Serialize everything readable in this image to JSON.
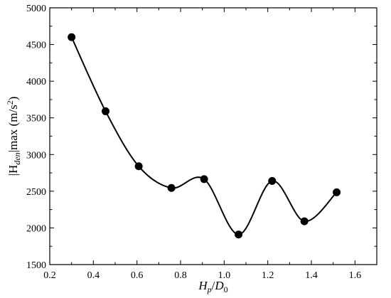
{
  "chart_data": {
    "type": "scatter",
    "title": "",
    "xlabel": {
      "base": "H",
      "sub": "p",
      "sep": "/",
      "base2": "D",
      "sub2": "0"
    },
    "ylabel": {
      "pre": "|H",
      "sub": "den",
      "post": "|max (m/s",
      "sup": "2",
      "end": ")"
    },
    "xlim": [
      0.2,
      1.7
    ],
    "ylim": [
      1500,
      5000
    ],
    "xticks": [
      0.2,
      0.4,
      0.6,
      0.8,
      1.0,
      1.2,
      1.4,
      1.6
    ],
    "xtick_labels": [
      "0.2",
      "0.4",
      "0.6",
      "0.8",
      "1.0",
      "1.2",
      "1.4",
      "1.6"
    ],
    "yticks": [
      1500,
      2000,
      2500,
      3000,
      3500,
      4000,
      4500,
      5000
    ],
    "ytick_labels": [
      "1500",
      "2000",
      "2500",
      "3000",
      "3500",
      "4000",
      "4500",
      "5000"
    ],
    "grid": false,
    "legend": "none",
    "series": [
      {
        "x": [
          0.3,
          0.456,
          0.608,
          0.758,
          0.908,
          1.066,
          1.22,
          1.368,
          1.516
        ],
        "y": [
          4600,
          3590,
          2840,
          2545,
          2665,
          1910,
          2640,
          2090,
          2485
        ],
        "color": "#000000",
        "marker": "circle",
        "line": "smooth"
      }
    ]
  }
}
